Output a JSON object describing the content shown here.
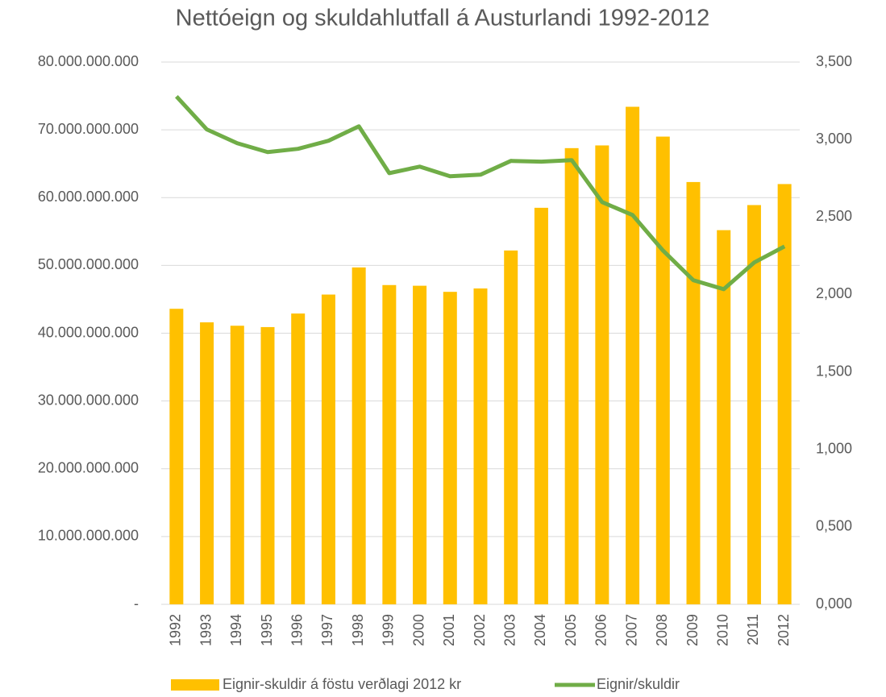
{
  "chart_data": {
    "type": "bar-line",
    "title": "Nettóeign og skuldahlutfall á Austurlandi 1992-2012",
    "categories": [
      "1992",
      "1993",
      "1994",
      "1995",
      "1996",
      "1997",
      "1998",
      "1999",
      "2000",
      "2001",
      "2002",
      "2003",
      "2004",
      "2005",
      "2006",
      "2007",
      "2008",
      "2009",
      "2010",
      "2011",
      "2012"
    ],
    "series": [
      {
        "name": "Eignir-skuldir á föstu verðlagi 2012 kr",
        "type": "bar",
        "color": "#ffc000",
        "axis": "y",
        "values": [
          43600000000,
          41600000000,
          41100000000,
          40900000000,
          42900000000,
          45700000000,
          49700000000,
          47100000000,
          47000000000,
          46100000000,
          46600000000,
          52200000000,
          58500000000,
          67300000000,
          67700000000,
          73400000000,
          69000000000,
          62300000000,
          55200000000,
          58900000000,
          62000000000
        ]
      },
      {
        "name": "Eignir/skuldir",
        "type": "line",
        "color": "#70ad47",
        "axis": "y2",
        "values": [
          3.278,
          3.065,
          2.976,
          2.919,
          2.94,
          2.992,
          3.085,
          2.783,
          2.825,
          2.763,
          2.773,
          2.862,
          2.857,
          2.867,
          2.596,
          2.513,
          2.284,
          2.092,
          2.034,
          2.206,
          2.31
        ]
      }
    ],
    "ylim": [
      0,
      80000000000
    ],
    "yticks": [
      {
        "value": 0,
        "label": "-"
      },
      {
        "value": 10000000000,
        "label": "10.000.000.000"
      },
      {
        "value": 20000000000,
        "label": "20.000.000.000"
      },
      {
        "value": 30000000000,
        "label": "30.000.000.000"
      },
      {
        "value": 40000000000,
        "label": "40.000.000.000"
      },
      {
        "value": 50000000000,
        "label": "50.000.000.000"
      },
      {
        "value": 60000000000,
        "label": "60.000.000.000"
      },
      {
        "value": 70000000000,
        "label": "70.000.000.000"
      },
      {
        "value": 80000000000,
        "label": "80.000.000.000"
      }
    ],
    "y2lim": [
      0,
      3.5
    ],
    "y2ticks": [
      {
        "value": 0,
        "label": "0,000"
      },
      {
        "value": 0.5,
        "label": "0,500"
      },
      {
        "value": 1,
        "label": "1,000"
      },
      {
        "value": 1.5,
        "label": "1,500"
      },
      {
        "value": 2,
        "label": "2,000"
      },
      {
        "value": 2.5,
        "label": "2,500"
      },
      {
        "value": 3,
        "label": "3,000"
      },
      {
        "value": 3.5,
        "label": "3,500"
      }
    ],
    "grid": true,
    "legend": "bottom"
  }
}
